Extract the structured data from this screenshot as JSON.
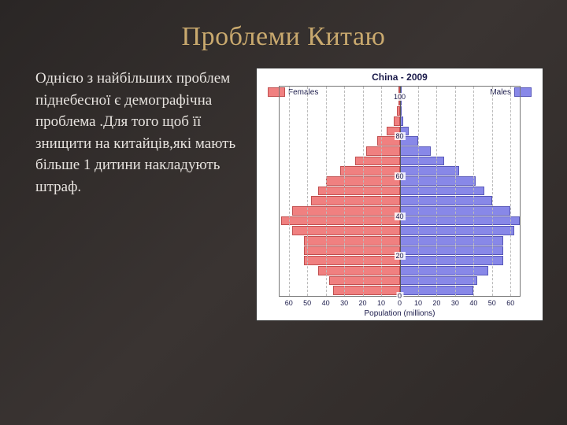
{
  "title": {
    "text": "Проблеми Китаю",
    "color": "#c9a96e"
  },
  "body": {
    "text": "Однією з найбільших проблем піднебесної є демографічна проблема .Для того щоб її знищити на китайців,які мають більше 1 дитини накладують штраф."
  },
  "chart": {
    "type": "population-pyramid",
    "title": "China - 2009",
    "legend_female": "Females",
    "legend_male": "Males",
    "female_color": "#f08080",
    "female_border": "#c05050",
    "male_color": "#8888e8",
    "male_border": "#5858b8",
    "background_color": "#ffffff",
    "grid_color": "#bbbbbb",
    "xlabel": "Population (millions)",
    "xmax": 65,
    "xticks": [
      0,
      10,
      20,
      30,
      40,
      50,
      60
    ],
    "yticks": [
      0,
      20,
      40,
      60,
      80,
      100
    ],
    "age_step": 5,
    "max_age": 100,
    "females": [
      36,
      38,
      44,
      52,
      52,
      52,
      58,
      64,
      58,
      48,
      44,
      40,
      32,
      24,
      18,
      12,
      7,
      3,
      1.5,
      0.6,
      0.2
    ],
    "males": [
      40,
      42,
      48,
      56,
      56,
      56,
      62,
      65,
      60,
      50,
      46,
      41,
      32,
      24,
      17,
      10,
      5,
      2,
      0.8,
      0.3,
      0.1
    ]
  }
}
